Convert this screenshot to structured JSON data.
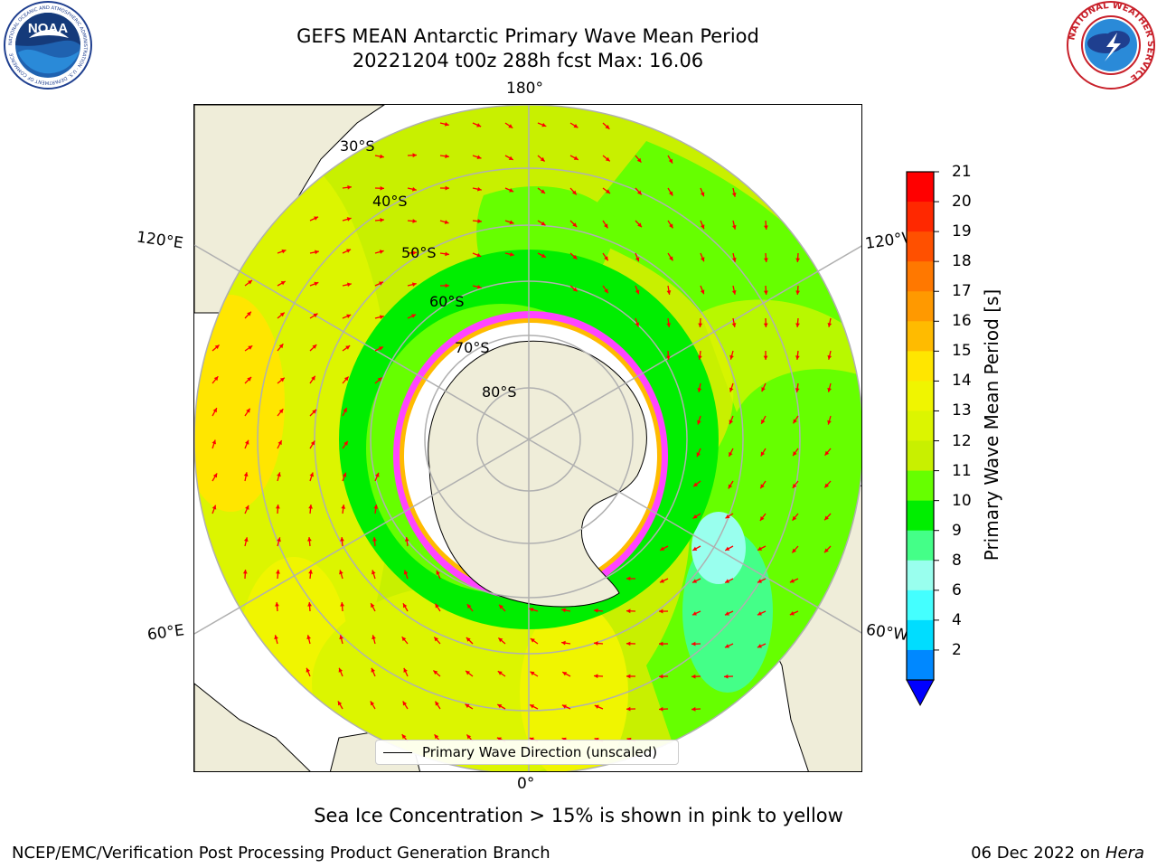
{
  "header": {
    "title_line1": "GEFS MEAN Antarctic Primary Wave Mean Period",
    "title_line2": "20221204 t00z 288h fcst   Max: 16.06"
  },
  "logos": {
    "noaa": {
      "text": "NOAA",
      "ring_text": "NATIONAL OCEANIC AND ATMOSPHERIC ADMINISTRATION · U.S. DEPARTMENT OF COMMERCE",
      "icon": "noaa-logo"
    },
    "nws": {
      "ring_text": "NATIONAL WEATHER SERVICE",
      "icon": "nws-logo"
    }
  },
  "map": {
    "projection": "south-polar-stereographic",
    "longitude_labels": {
      "top": "180°",
      "bottom": "0°",
      "left_upper": "120°E",
      "left_lower": "60°E",
      "right_upper": "120°W",
      "right_lower": "60°W"
    },
    "latitude_labels": [
      "30°S",
      "40°S",
      "50°S",
      "60°S",
      "70°S",
      "80°S"
    ],
    "land_color": "#efedd9",
    "ice_color": "#ffffff",
    "arrow_color": "#ff0000",
    "grid_color": "#b0b0b0",
    "legend_label": "Primary Wave Direction (unscaled)"
  },
  "colorbar": {
    "title": "Primary Wave Mean Period [s]",
    "ticks": [
      "21",
      "20",
      "19",
      "18",
      "17",
      "16",
      "15",
      "14",
      "13",
      "12",
      "11",
      "10",
      "9",
      "8",
      "6",
      "4",
      "2"
    ],
    "colors": [
      "#ff0000",
      "#ff2800",
      "#ff5000",
      "#ff7800",
      "#ff9900",
      "#ffbb00",
      "#ffe600",
      "#f0f500",
      "#dcf500",
      "#c8f000",
      "#66ff00",
      "#00ee00",
      "#44ff88",
      "#99ffee",
      "#44ffff",
      "#00ddff",
      "#0088ff"
    ],
    "under_color": "#0000ff"
  },
  "footer": {
    "note": "Sea Ice Concentration > 15% is shown in pink to yellow",
    "credit": "NCEP/EMC/Verification Post Processing Product Generation Branch",
    "date": "06 Dec 2022 on",
    "host": "Hera"
  }
}
